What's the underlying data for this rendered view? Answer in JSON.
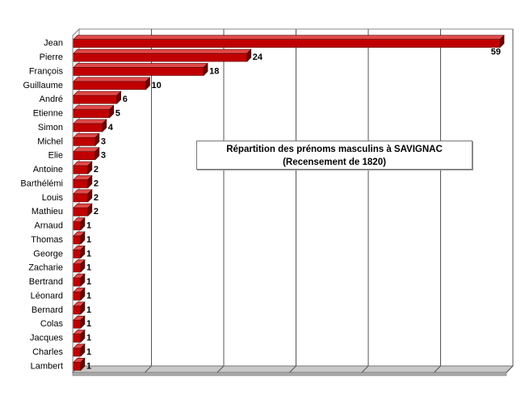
{
  "chart_data": {
    "type": "bar",
    "orientation": "horizontal",
    "title": "Répartition des prénoms masculins à SAVIGNAC",
    "subtitle": "(Recensement de 1820)",
    "xlabel": "",
    "ylabel": "",
    "xlim": [
      0,
      60
    ],
    "grid": true,
    "legend": "none",
    "categories": [
      "Jean",
      "Pierre",
      "François",
      "Guillaume",
      "André",
      "Etienne",
      "Simon",
      "Michel",
      "Elie",
      "Antoine",
      "Barthélémi",
      "Louis",
      "Mathieu",
      "Arnaud",
      "Thomas",
      "George",
      "Zacharie",
      "Bertrand",
      "Léonard",
      "Bernard",
      "Colas",
      "Jacques",
      "Charles",
      "Lambert"
    ],
    "values": [
      59,
      24,
      18,
      10,
      6,
      5,
      4,
      3,
      3,
      2,
      2,
      2,
      2,
      1,
      1,
      1,
      1,
      1,
      1,
      1,
      1,
      1,
      1,
      1
    ],
    "colors": {
      "bar_front": "#c00000",
      "bar_top": "#e04a4a",
      "bar_side": "#6e0000",
      "floor": "#c8c8c8",
      "grid": "#555555"
    }
  }
}
